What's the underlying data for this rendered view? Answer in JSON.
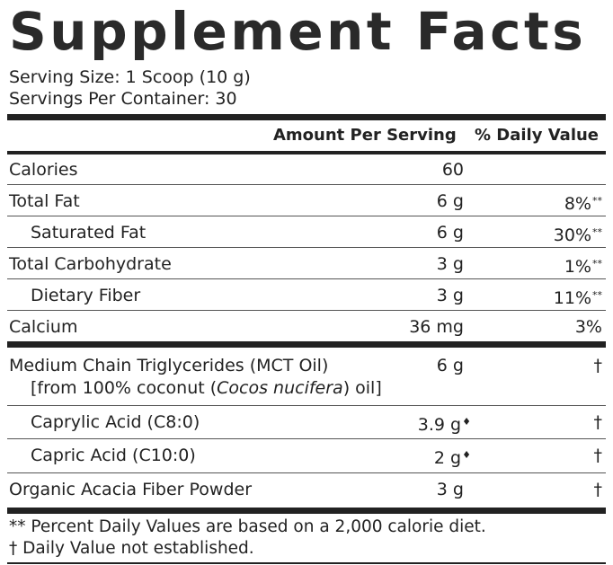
{
  "title": "Supplement Facts",
  "serving_size": "Serving Size: 1 Scoop (10 g)",
  "servings_per_container": "Servings Per Container: 30",
  "header": {
    "amount": "Amount Per Serving",
    "daily_value": "% Daily Value"
  },
  "rows": [
    {
      "label": "Calories",
      "amount": "60",
      "dv": ""
    },
    {
      "label": "Total Fat",
      "amount": "6 g",
      "dv": "8%",
      "dv_mark": "**"
    },
    {
      "label": "Saturated Fat",
      "amount": "6 g",
      "dv": "30%",
      "dv_mark": "**"
    },
    {
      "label": "Total Carbohydrate",
      "amount": "3 g",
      "dv": "1%",
      "dv_mark": "**"
    },
    {
      "label": "Dietary Fiber",
      "amount": "3 g",
      "dv": "11%",
      "dv_mark": "**"
    },
    {
      "label": "Calcium",
      "amount": "36 mg",
      "dv": "3%"
    },
    {
      "label": "Medium Chain Triglycerides (MCT Oil)",
      "amount": "6 g",
      "dv": "†"
    },
    {
      "label": "Caprylic Acid (C8:0)",
      "amount": "3.9 g",
      "amount_mark": "♦",
      "dv": "†"
    },
    {
      "label": "Capric Acid (C10:0)",
      "amount": "2 g",
      "amount_mark": "♦",
      "dv": "†"
    },
    {
      "label": "Organic Acacia Fiber Powder",
      "amount": "3 g",
      "dv": "†"
    }
  ],
  "mct_source": {
    "prefix": "[from 100% coconut (",
    "species": "Cocos nucifera",
    "suffix": ") oil]"
  },
  "footnotes": [
    "** Percent Daily Values are based on a 2,000 calorie diet.",
    "† Daily Value not established."
  ]
}
